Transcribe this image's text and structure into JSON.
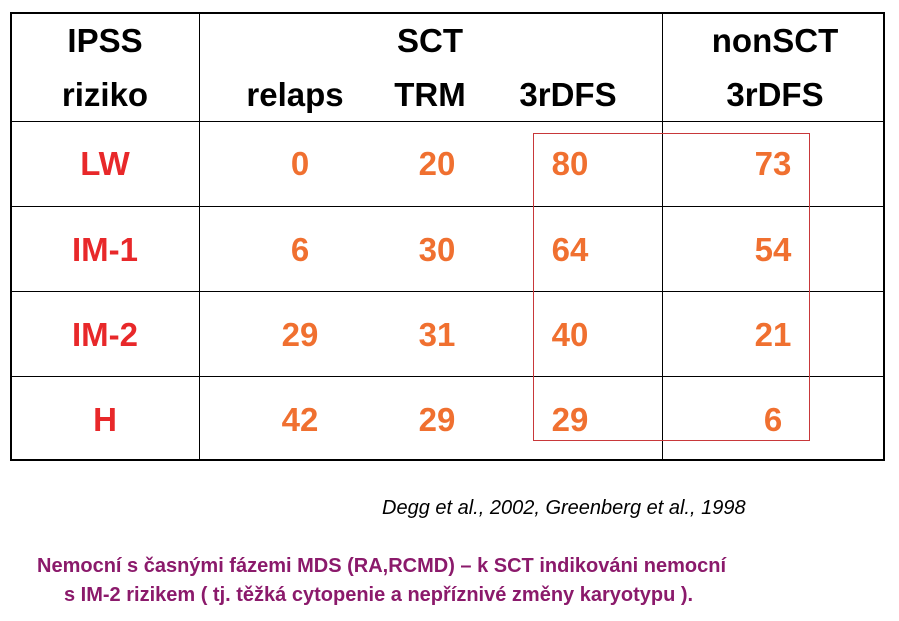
{
  "table": {
    "header_row1": {
      "ipss": "IPSS",
      "sct": "SCT",
      "nonsct": "nonSCT"
    },
    "header_row2": {
      "riziko": "riziko",
      "relaps": "relaps",
      "trm": "TRM",
      "sct_3rdfs": "3rDFS",
      "nonsct_3rdfs": "3rDFS"
    },
    "rows": [
      {
        "risk": "LW",
        "relaps": "0",
        "trm": "20",
        "sct_3rdfs": "80",
        "nonsct_3rdfs": "73"
      },
      {
        "risk": "IM-1",
        "relaps": "6",
        "trm": "30",
        "sct_3rdfs": "64",
        "nonsct_3rdfs": "54"
      },
      {
        "risk": "IM-2",
        "relaps": "29",
        "trm": "31",
        "sct_3rdfs": "40",
        "nonsct_3rdfs": "21"
      },
      {
        "risk": "H",
        "relaps": "42",
        "trm": "29",
        "sct_3rdfs": "29",
        "nonsct_3rdfs": "6"
      }
    ]
  },
  "citation": "Degg et al., 2002,  Greenberg et al., 1998",
  "note": {
    "line1": "Nemocní s časnými fázemi MDS (RA,RCMD) – k SCT indikováni nemocní",
    "line2": "s IM-2 rizikem ( tj. těžká cytopenie a nepříznivé změny karyotypu )."
  },
  "colors": {
    "risk_label": "#e8282a",
    "value": "#f07030",
    "note": "#8b1a6b",
    "highlight_box": "#c8383a"
  }
}
